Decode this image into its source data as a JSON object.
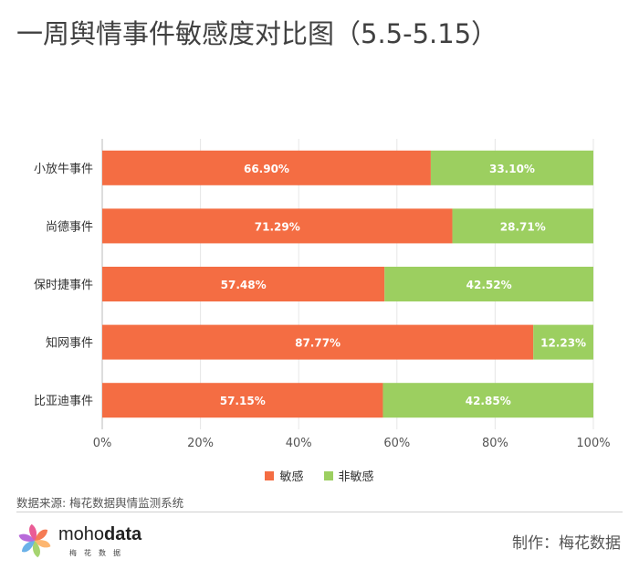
{
  "title": "一周舆情事件敏感度对比图（5.5-5.15）",
  "chart_data": {
    "type": "bar",
    "orientation": "horizontal",
    "stacked": true,
    "categories": [
      "小放牛事件",
      "尚德事件",
      "保时捷事件",
      "知网事件",
      "比亚迪事件"
    ],
    "series": [
      {
        "name": "敏感",
        "color": "#f46d43",
        "values": [
          66.9,
          71.29,
          57.48,
          87.77,
          57.15
        ],
        "labels": [
          "66.90%",
          "71.29%",
          "57.48%",
          "87.77%",
          "57.15%"
        ]
      },
      {
        "name": "非敏感",
        "color": "#9ccf60",
        "values": [
          33.1,
          28.71,
          42.52,
          12.23,
          42.85
        ],
        "labels": [
          "33.10%",
          "28.71%",
          "42.52%",
          "12.23%",
          "42.85%"
        ]
      }
    ],
    "xlim": [
      0,
      100
    ],
    "x_ticks": [
      "0%",
      "20%",
      "40%",
      "60%",
      "80%",
      "100%"
    ],
    "legend_position": "bottom",
    "grid": true
  },
  "footer": {
    "source": "数据来源: 梅花数据舆情监测系统",
    "logo_text_a": "moho",
    "logo_text_b": "data",
    "logo_sub": "梅花数据",
    "credit": "制作：梅花数据"
  },
  "logo_colors": [
    "#f46d43",
    "#fdae61",
    "#9ccf60",
    "#5aa9e6",
    "#b05ad6",
    "#e84a8a"
  ]
}
